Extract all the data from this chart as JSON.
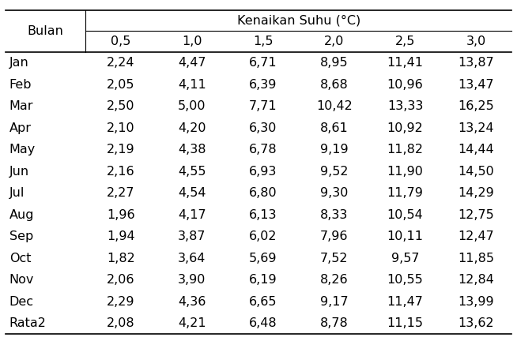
{
  "header_group": "Kenaikan Suhu (°C)",
  "col_header_row1": "Bulan",
  "col_headers": [
    "0,5",
    "1,0",
    "1,5",
    "2,0",
    "2,5",
    "3,0"
  ],
  "rows": [
    [
      "Jan",
      "2,24",
      "4,47",
      "6,71",
      "8,95",
      "11,41",
      "13,87"
    ],
    [
      "Feb",
      "2,05",
      "4,11",
      "6,39",
      "8,68",
      "10,96",
      "13,47"
    ],
    [
      "Mar",
      "2,50",
      "5,00",
      "7,71",
      "10,42",
      "13,33",
      "16,25"
    ],
    [
      "Apr",
      "2,10",
      "4,20",
      "6,30",
      "8,61",
      "10,92",
      "13,24"
    ],
    [
      "May",
      "2,19",
      "4,38",
      "6,78",
      "9,19",
      "11,82",
      "14,44"
    ],
    [
      "Jun",
      "2,16",
      "4,55",
      "6,93",
      "9,52",
      "11,90",
      "14,50"
    ],
    [
      "Jul",
      "2,27",
      "4,54",
      "6,80",
      "9,30",
      "11,79",
      "14,29"
    ],
    [
      "Aug",
      "1,96",
      "4,17",
      "6,13",
      "8,33",
      "10,54",
      "12,75"
    ],
    [
      "Sep",
      "1,94",
      "3,87",
      "6,02",
      "7,96",
      "10,11",
      "12,47"
    ],
    [
      "Oct",
      "1,82",
      "3,64",
      "5,69",
      "7,52",
      "9,57",
      "11,85"
    ],
    [
      "Nov",
      "2,06",
      "3,90",
      "6,19",
      "8,26",
      "10,55",
      "12,84"
    ],
    [
      "Dec",
      "2,29",
      "4,36",
      "6,65",
      "9,17",
      "11,47",
      "13,99"
    ],
    [
      "Rata2",
      "2,08",
      "4,21",
      "6,48",
      "8,78",
      "11,15",
      "13,62"
    ]
  ],
  "bg_color": "#ffffff",
  "text_color": "#000000",
  "line_color": "#000000",
  "font_size": 11.5
}
